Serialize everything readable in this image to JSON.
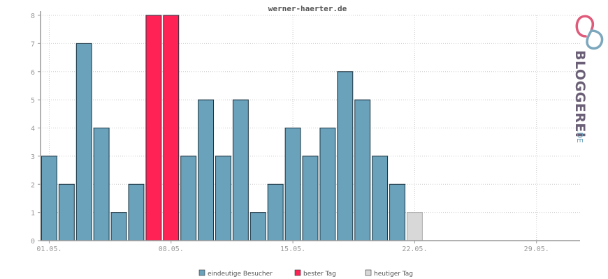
{
  "chart_data": {
    "type": "bar",
    "title": "werner-haerter.de",
    "ylim": [
      0,
      8
    ],
    "yticks": [
      0,
      1,
      2,
      3,
      4,
      5,
      6,
      7,
      8
    ],
    "xlim_days": 31,
    "x_tick_labels": [
      "01.05.",
      "08.05.",
      "15.05.",
      "22.05.",
      "29.05."
    ],
    "x_tick_days": [
      1,
      8,
      15,
      22,
      29
    ],
    "grid": true,
    "legend_position": "bottom",
    "values": [
      3,
      2,
      7,
      4,
      1,
      2,
      8,
      8,
      3,
      5,
      3,
      5,
      1,
      2,
      4,
      3,
      4,
      6,
      5,
      3,
      2,
      1
    ],
    "kinds": [
      "v",
      "v",
      "v",
      "v",
      "v",
      "v",
      "best",
      "best",
      "v",
      "v",
      "v",
      "v",
      "v",
      "v",
      "v",
      "v",
      "v",
      "v",
      "v",
      "v",
      "v",
      "today"
    ],
    "legend": [
      {
        "label": "eindeutige Besucher",
        "kind": "v"
      },
      {
        "label": "bester Tag",
        "kind": "best"
      },
      {
        "label": "heutiger Tag",
        "kind": "today"
      }
    ]
  },
  "colors": {
    "v": "#6aa2bb",
    "best": "#ff2255",
    "today": "#d8d8d8",
    "grid": "#cccccc",
    "axis": "#999999"
  },
  "logo": {
    "text": "BLOGGEREI",
    "tld": ".DE",
    "icon": "bloggerei-logo-icon"
  }
}
